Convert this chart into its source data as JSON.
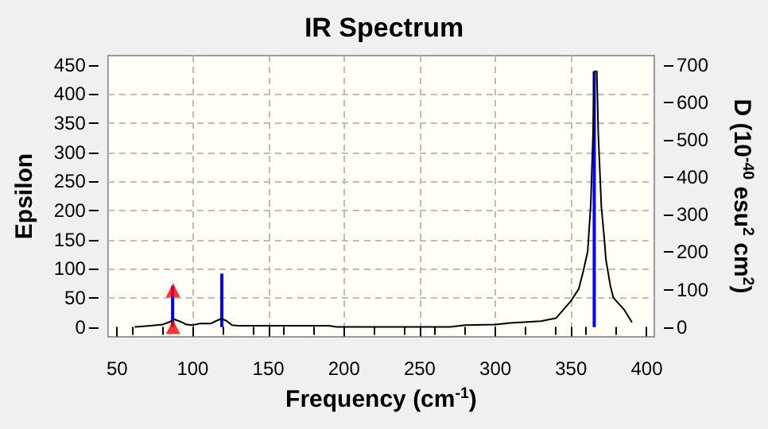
{
  "chart_data": {
    "type": "line",
    "title": "IR Spectrum",
    "xlabel": "Frequency (cm$^{-1}$)",
    "ylabel": "Epsilon",
    "y2label": "D (10$^{-40}$ esu$^{2}$ cm$^{2}$)",
    "xlim": [
      44,
      405
    ],
    "xticks": [
      50,
      100,
      150,
      200,
      250,
      300,
      350,
      400
    ],
    "ylim": [
      -17,
      466
    ],
    "yticks": [
      0,
      50,
      100,
      150,
      200,
      250,
      300,
      350,
      400,
      450
    ],
    "y2lim": [
      -26,
      725
    ],
    "y2ticks": [
      0,
      100,
      200,
      300,
      400,
      500,
      600,
      700
    ],
    "grid": true,
    "marker": "none",
    "line_style": "solid",
    "series": [
      {
        "color": "#000000",
        "x": [
          62,
          72,
          80,
          85,
          88,
          92,
          96,
          100,
          105,
          112,
          116,
          119,
          122,
          126,
          130,
          190,
          195,
          270,
          280,
          300,
          310,
          330,
          340,
          350,
          355,
          358,
          361,
          363,
          364.5,
          365.5,
          367,
          368,
          370,
          372,
          373,
          376,
          378,
          385,
          390
        ],
        "values": [
          0,
          2,
          4,
          9,
          13,
          9,
          4,
          3,
          6,
          6,
          11,
          14,
          11,
          3,
          2,
          2,
          0,
          0,
          3,
          4,
          7,
          10,
          15,
          45,
          65,
          95,
          130,
          210,
          330,
          439,
          439,
          330,
          207,
          150,
          116,
          70,
          50,
          30,
          9
        ]
      },
      {
        "type": "bar",
        "axis": "y2",
        "color": "#0000ff",
        "x": [
          86.7,
          119.2,
          365.3
        ],
        "values": [
          110,
          143,
          683
        ]
      },
      {
        "type": "scatter",
        "color": "#ff0000",
        "marker": "triangle",
        "x": [
          87,
          87
        ],
        "values": [
          63,
          0
        ]
      }
    ]
  }
}
